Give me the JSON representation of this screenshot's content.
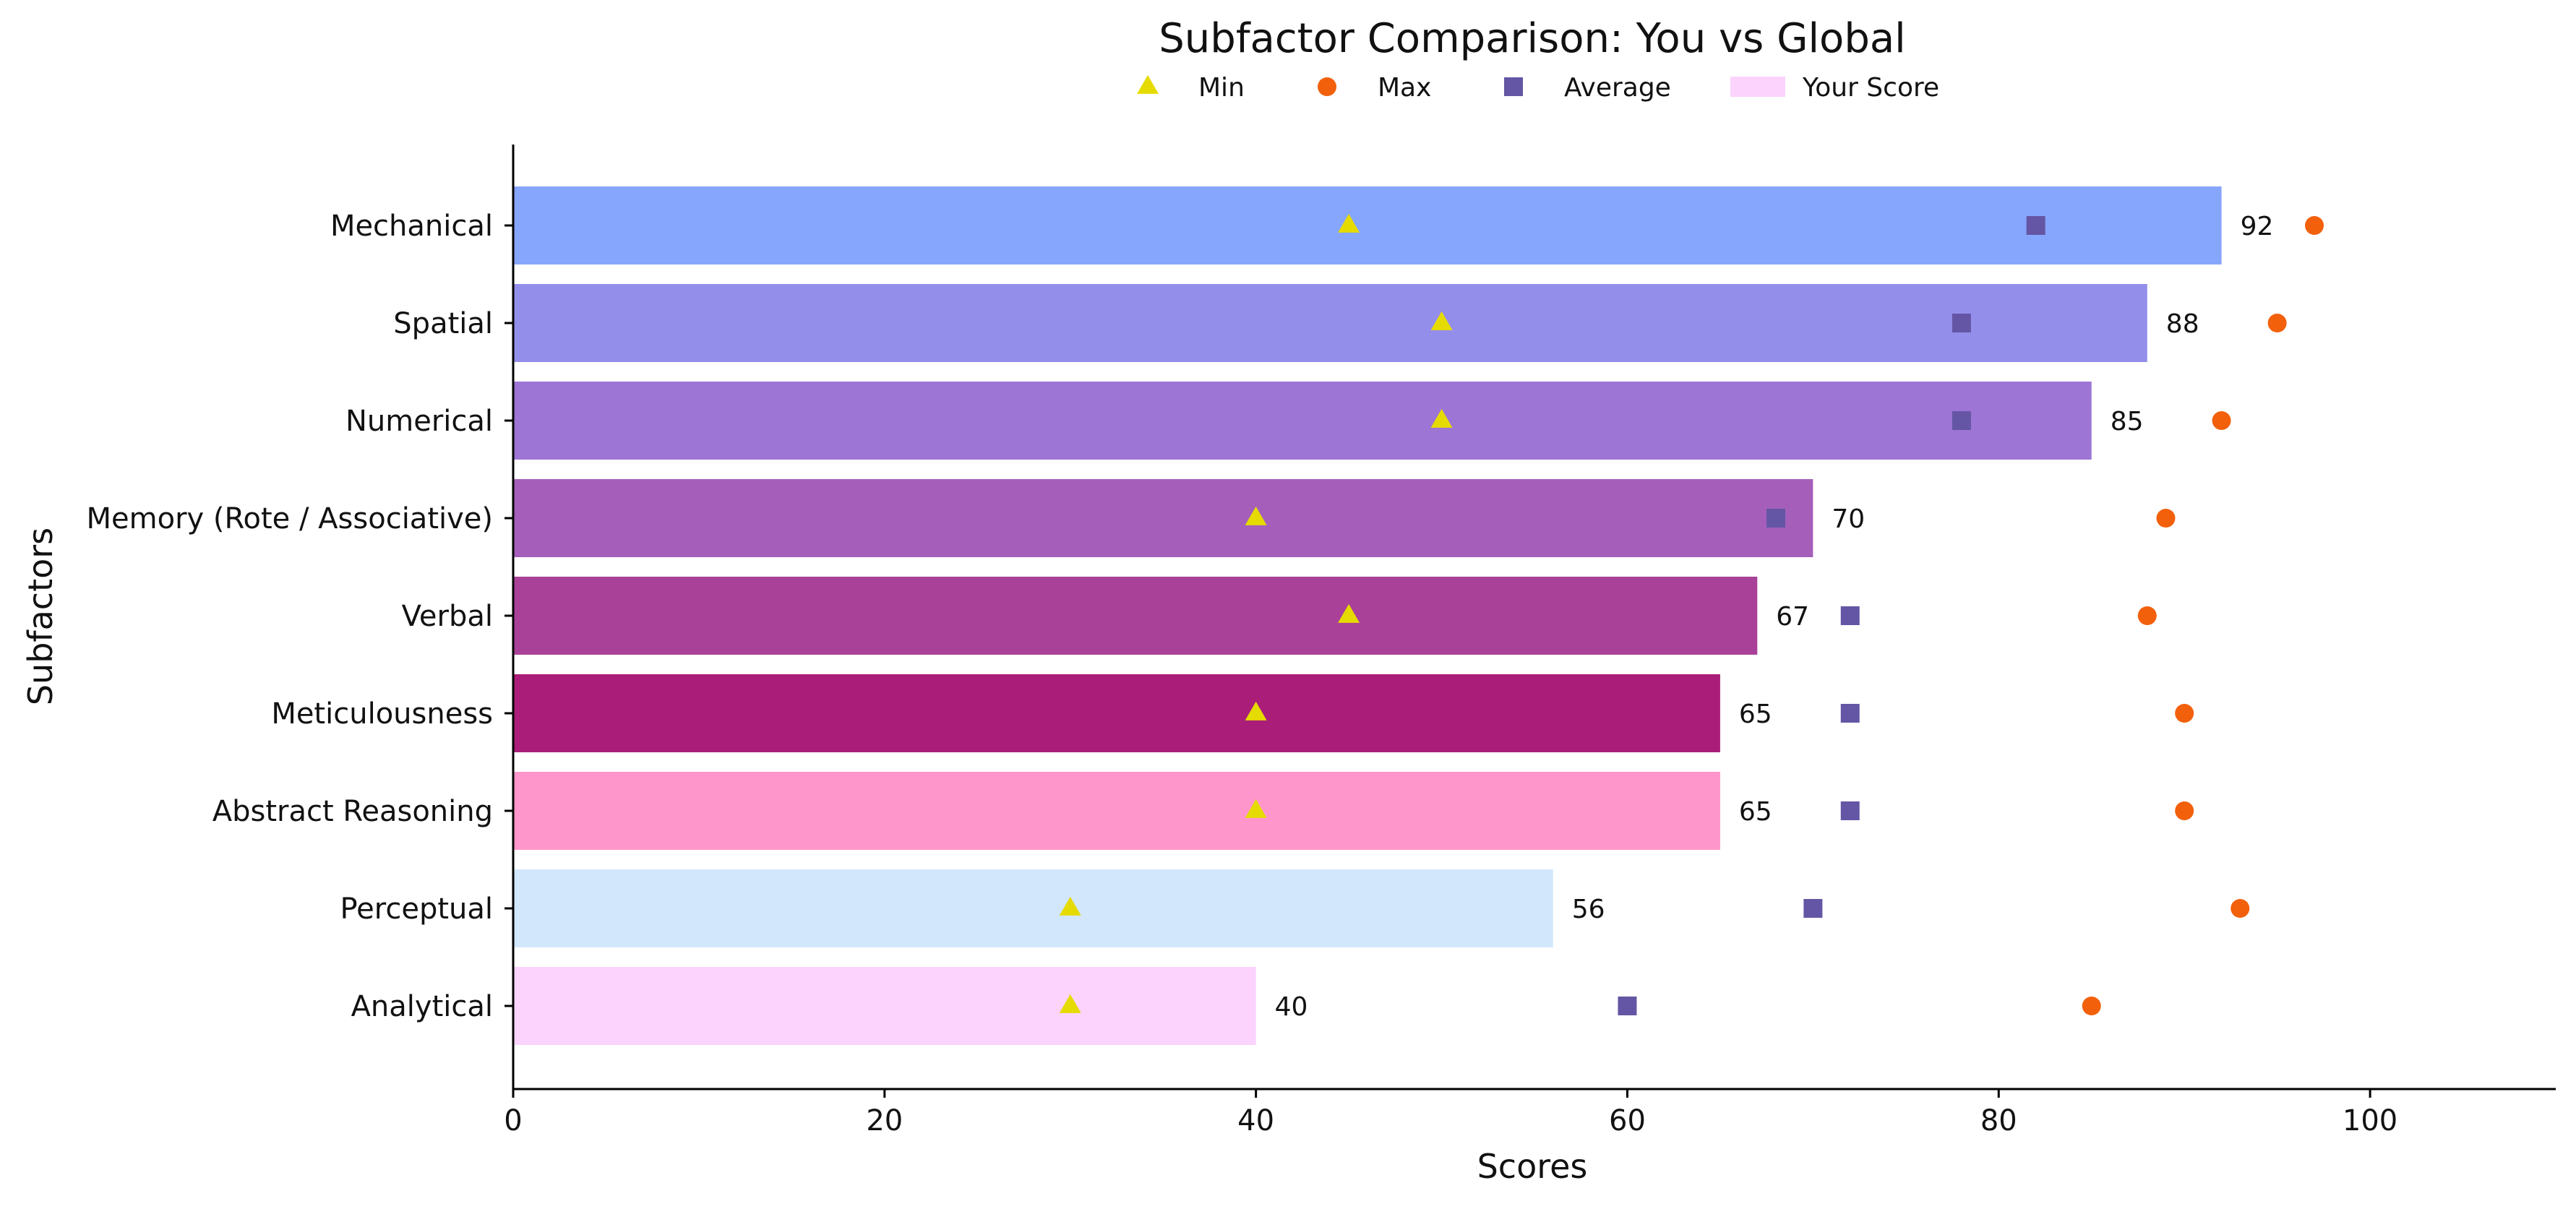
{
  "chart_data": {
    "type": "bar",
    "orientation": "horizontal",
    "title": "Subfactor Comparison: You vs Global",
    "xlabel": "Scores",
    "ylabel": "Subfactors",
    "xlim": [
      0,
      110
    ],
    "xticks": [
      0,
      20,
      40,
      60,
      80,
      100
    ],
    "grid": false,
    "legend_position": "top",
    "categories": [
      "Mechanical",
      "Spatial",
      "Numerical",
      "Memory (Rote / Associative)",
      "Verbal",
      "Meticulousness",
      "Abstract Reasoning",
      "Perceptual",
      "Analytical"
    ],
    "bar_colors": [
      "#86a6fd",
      "#948eeb",
      "#9d75d5",
      "#a55fbb",
      "#a94199",
      "#aa1e7a",
      "#ff96cb",
      "#d2e7fc",
      "#fbd3fd"
    ],
    "series": [
      {
        "name": "Your Score",
        "kind": "bar",
        "color": "#fbd3fd",
        "values": [
          92,
          88,
          85,
          70,
          67,
          65,
          65,
          56,
          40
        ]
      },
      {
        "name": "Min",
        "kind": "marker",
        "marker": "triangle",
        "color": "#e6db00",
        "values": [
          45,
          50,
          50,
          40,
          45,
          40,
          40,
          30,
          30
        ]
      },
      {
        "name": "Max",
        "kind": "marker",
        "marker": "circle",
        "color": "#f2600c",
        "values": [
          97,
          95,
          92,
          89,
          88,
          90,
          90,
          93,
          85
        ]
      },
      {
        "name": "Average",
        "kind": "marker",
        "marker": "square",
        "color": "#6456a4",
        "values": [
          82,
          78,
          78,
          68,
          72,
          72,
          72,
          70,
          60
        ]
      }
    ],
    "legend": [
      {
        "label": "Min",
        "marker": "triangle",
        "color": "#e6db00"
      },
      {
        "label": "Max",
        "marker": "circle",
        "color": "#f2600c"
      },
      {
        "label": "Average",
        "marker": "square",
        "color": "#6456a4"
      },
      {
        "label": "Your Score",
        "marker": "rect",
        "color": "#fbd3fd"
      }
    ]
  }
}
